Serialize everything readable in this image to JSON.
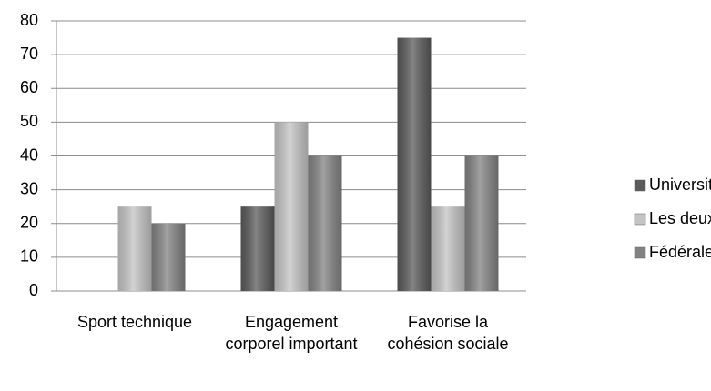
{
  "chart_data": {
    "type": "bar",
    "categories": [
      "Sport technique",
      "Engagement corporel important",
      "Favorise la cohésion sociale"
    ],
    "series": [
      {
        "name": "Universitaires",
        "color": "#5a5a5a",
        "values": [
          0,
          25,
          75
        ]
      },
      {
        "name": "Les deux",
        "color": "#c4c4c4",
        "values": [
          25,
          50,
          25
        ]
      },
      {
        "name": "Fédérales",
        "color": "#828282",
        "values": [
          20,
          40,
          40
        ]
      }
    ],
    "ylim": [
      0,
      80
    ],
    "yticks": [
      0,
      10,
      20,
      30,
      40,
      50,
      60,
      70,
      80
    ],
    "grid": true,
    "legend": "right"
  }
}
